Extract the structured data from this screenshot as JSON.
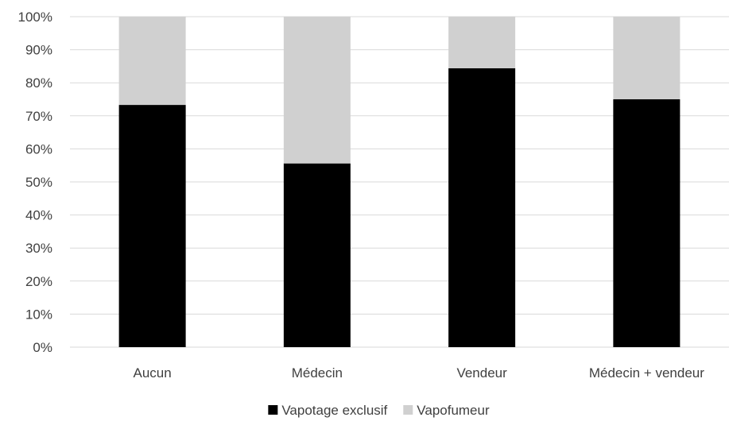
{
  "chart_data": {
    "type": "bar",
    "stacked": true,
    "categories": [
      "Aucun",
      "Médecin",
      "Vendeur",
      "Médecin + vendeur"
    ],
    "series": [
      {
        "name": "Vapotage exclusif",
        "color": "#000000",
        "values": [
          73.3,
          55.6,
          84.4,
          75.0
        ]
      },
      {
        "name": "Vapofumeur",
        "color": "#d0d0d0",
        "values": [
          26.7,
          44.4,
          15.6,
          25.0
        ]
      }
    ],
    "ylim": [
      0,
      100
    ],
    "yticks": [
      "0%",
      "10%",
      "20%",
      "30%",
      "40%",
      "50%",
      "60%",
      "70%",
      "80%",
      "90%",
      "100%"
    ],
    "grid": true,
    "gridline_color": "#d9d9d9",
    "legend_position": "bottom",
    "title": "",
    "xlabel": "",
    "ylabel": ""
  }
}
